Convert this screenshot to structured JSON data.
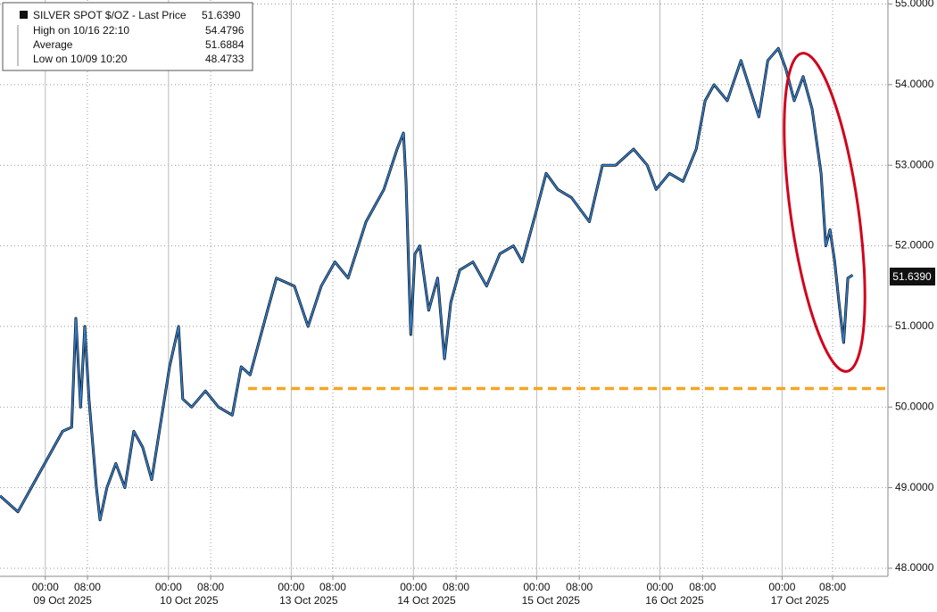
{
  "chart_data": {
    "type": "line",
    "title": "SILVER SPOT $/OZ - Last Price",
    "last_price": 51.639,
    "last_price_label": "51.6390",
    "stats": [
      {
        "name": "High on 10/16 22:10",
        "value": 54.4796,
        "label": "54.4796"
      },
      {
        "name": "Average",
        "value": 51.6884,
        "label": "51.6884"
      },
      {
        "name": "Low on 10/09 10:20",
        "value": 48.4733,
        "label": "48.4733"
      }
    ],
    "xlim": [
      0,
      168.6
    ],
    "ylim": [
      47.9,
      55.05
    ],
    "yticks": [
      {
        "value": 48,
        "label": "48.0000"
      },
      {
        "value": 49,
        "label": "49.0000"
      },
      {
        "value": 50,
        "label": "50.0000"
      },
      {
        "value": 51,
        "label": "51.0000"
      },
      {
        "value": 52,
        "label": "52.0000"
      },
      {
        "value": 53,
        "label": "53.0000"
      },
      {
        "value": 54,
        "label": "54.0000"
      },
      {
        "value": 55,
        "label": "55.0000"
      }
    ],
    "xticks": [
      {
        "value": 8.6,
        "label": "00:00"
      },
      {
        "value": 16.6,
        "label": "08:00"
      },
      {
        "value": 32.0,
        "label": "00:00"
      },
      {
        "value": 40.0,
        "label": "08:00"
      },
      {
        "value": 55.3,
        "label": "00:00"
      },
      {
        "value": 63.2,
        "label": "08:00"
      },
      {
        "value": 78.5,
        "label": "00:00"
      },
      {
        "value": 86.6,
        "label": "08:00"
      },
      {
        "value": 101.9,
        "label": "00:00"
      },
      {
        "value": 110.0,
        "label": "08:00"
      },
      {
        "value": 125.3,
        "label": "00:00"
      },
      {
        "value": 133.4,
        "label": "08:00"
      },
      {
        "value": 148.5,
        "label": "00:00"
      },
      {
        "value": 158.1,
        "label": "08:00"
      }
    ],
    "date_labels": [
      {
        "value": 11.9,
        "label": "09 Oct 2025"
      },
      {
        "value": 35.9,
        "label": "10 Oct 2025"
      },
      {
        "value": 58.6,
        "label": "13 Oct 2025"
      },
      {
        "value": 81.0,
        "label": "14 Oct 2025"
      },
      {
        "value": 104.6,
        "label": "15 Oct 2025"
      },
      {
        "value": 128.1,
        "label": "16 Oct 2025"
      },
      {
        "value": 151.9,
        "label": "17 Oct 2025"
      }
    ],
    "grid": true,
    "reference_line": {
      "value": 50.23,
      "x_start": 47.1,
      "color": "#f5a623"
    },
    "series": [
      {
        "name": "SILVER SPOT $/OZ",
        "color": "#2f7fd0",
        "x": [
          0,
          3.4,
          6.8,
          10.2,
          11.9,
          13.6,
          14.4,
          15.3,
          16.1,
          16.9,
          18.3,
          19.0,
          20.3,
          22.0,
          23.7,
          25.4,
          27.1,
          28.8,
          30.5,
          32.2,
          33.9,
          34.7,
          36.4,
          39.0,
          41.5,
          44.1,
          45.8,
          47.5,
          50.8,
          52.5,
          55.9,
          58.5,
          61.0,
          63.6,
          66.1,
          69.5,
          72.9,
          75.4,
          76.6,
          77.1,
          78.0,
          78.8,
          79.7,
          81.4,
          83.1,
          84.4,
          85.6,
          87.3,
          89.8,
          92.4,
          94.9,
          97.5,
          99.2,
          101.7,
          103.7,
          105.9,
          108.5,
          111.9,
          114.4,
          116.9,
          120.3,
          122.9,
          124.6,
          127.1,
          129.7,
          132.2,
          133.9,
          135.6,
          138.1,
          140.7,
          144.1,
          145.8,
          147.8,
          149.2,
          150.8,
          152.5,
          154.2,
          155.9,
          156.8,
          157.6,
          158.5,
          159.3,
          160.2,
          161.0,
          161.9
        ],
        "values": [
          48.9,
          48.7,
          49.1,
          49.5,
          49.7,
          49.75,
          51.1,
          50.0,
          51.0,
          50.1,
          49.0,
          48.6,
          49.0,
          49.3,
          49.0,
          49.7,
          49.5,
          49.1,
          49.8,
          50.5,
          51.0,
          50.1,
          50.0,
          50.2,
          50.0,
          49.9,
          50.5,
          50.4,
          51.2,
          51.6,
          51.5,
          51.0,
          51.5,
          51.8,
          51.6,
          52.3,
          52.7,
          53.2,
          53.4,
          52.8,
          50.9,
          51.9,
          52.0,
          51.2,
          51.6,
          50.6,
          51.3,
          51.7,
          51.8,
          51.5,
          51.9,
          52.0,
          51.8,
          52.4,
          52.9,
          52.7,
          52.6,
          52.3,
          53.0,
          53.0,
          53.2,
          53.0,
          52.7,
          52.9,
          52.8,
          53.2,
          53.8,
          54.0,
          53.8,
          54.3,
          53.6,
          54.3,
          54.45,
          54.2,
          53.8,
          54.1,
          53.7,
          52.9,
          52.0,
          52.2,
          51.8,
          51.3,
          50.8,
          51.6,
          51.639
        ]
      }
    ]
  }
}
